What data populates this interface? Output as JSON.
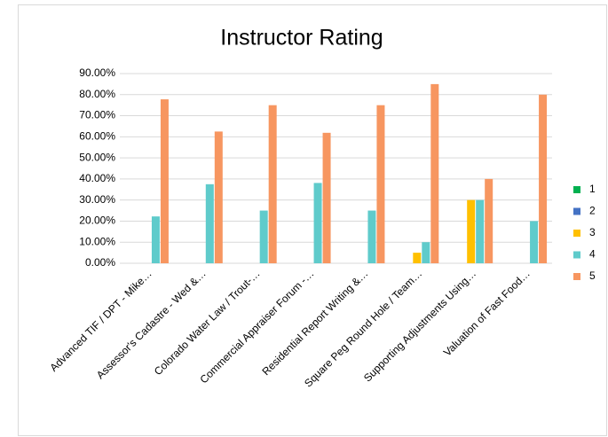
{
  "chart_data": {
    "type": "bar",
    "title": "Instructor Rating",
    "categories": [
      "Advanced TIF / DPT - Mike…",
      "Assessor's Cadastre - Wed &…",
      "Colorado Water Law / Trout-…",
      "Commercial Appraiser Forum -…",
      "Residential Report Writing &…",
      "Square Peg Round Hole / Team…",
      "Supporting Adjustments Using…",
      "Valuation of Fast Food…"
    ],
    "series": [
      {
        "name": "1",
        "color": "#00b050",
        "values": [
          0,
          0,
          0,
          0,
          0,
          0,
          0,
          0
        ]
      },
      {
        "name": "2",
        "color": "#4472c4",
        "values": [
          0,
          0,
          0,
          0,
          0,
          0,
          0,
          0
        ]
      },
      {
        "name": "3",
        "color": "#ffc000",
        "values": [
          0,
          0,
          0,
          0,
          0,
          5,
          30,
          0
        ]
      },
      {
        "name": "4",
        "color": "#5fcbcb",
        "values": [
          22.22,
          37.5,
          25,
          38.1,
          25,
          10,
          30,
          20
        ]
      },
      {
        "name": "5",
        "color": "#f79660",
        "values": [
          77.78,
          62.5,
          75,
          61.9,
          75,
          85,
          40,
          80
        ]
      }
    ],
    "ylim": [
      0,
      90
    ],
    "yticks": [
      {
        "value": 0,
        "label": "0.00%"
      },
      {
        "value": 10,
        "label": "10.00%"
      },
      {
        "value": 20,
        "label": "20.00%"
      },
      {
        "value": 30,
        "label": "30.00%"
      },
      {
        "value": 40,
        "label": "40.00%"
      },
      {
        "value": 50,
        "label": "50.00%"
      },
      {
        "value": 60,
        "label": "60.00%"
      },
      {
        "value": 70,
        "label": "70.00%"
      },
      {
        "value": 80,
        "label": "80.00%"
      },
      {
        "value": 90,
        "label": "90.00%"
      }
    ],
    "grid": true,
    "legend": "right"
  }
}
